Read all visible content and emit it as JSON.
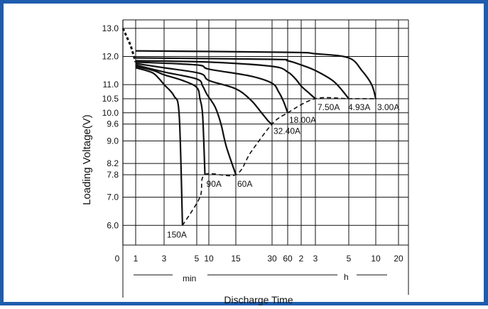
{
  "chart_data": {
    "type": "line",
    "ylabel": "Loading  Voltage(V)",
    "xlabel": "Discharge Time",
    "x_unit_min": "min",
    "x_unit_h": "h",
    "ylim": [
      5.3,
      13.3
    ],
    "y_ticks": [
      {
        "value": 6.0,
        "label": "6.0"
      },
      {
        "value": 7.0,
        "label": "7.0"
      },
      {
        "value": 7.8,
        "label": "7.8"
      },
      {
        "value": 8.2,
        "label": "8.2"
      },
      {
        "value": 9.0,
        "label": "9.0"
      },
      {
        "value": 9.6,
        "label": "9.6"
      },
      {
        "value": 10.0,
        "label": "10.0"
      },
      {
        "value": 10.5,
        "label": "10.5"
      },
      {
        "value": 11.0,
        "label": "11.0"
      },
      {
        "value": 12.0,
        "label": "12.0"
      },
      {
        "value": 13.0,
        "label": "13.0"
      }
    ],
    "x_ticks": [
      {
        "minutes": 0,
        "label": "0"
      },
      {
        "minutes": 1,
        "label": "1"
      },
      {
        "minutes": 3,
        "label": "3"
      },
      {
        "minutes": 5,
        "label": "5"
      },
      {
        "minutes": 10,
        "label": "10"
      },
      {
        "minutes": 15,
        "label": "15"
      },
      {
        "minutes": 30,
        "label": "30"
      },
      {
        "minutes": 60,
        "label": "60"
      },
      {
        "minutes": 120,
        "label": "2"
      },
      {
        "minutes": 180,
        "label": "3"
      },
      {
        "minutes": 300,
        "label": "5"
      },
      {
        "minutes": 600,
        "label": "10"
      },
      {
        "minutes": 1200,
        "label": "20"
      }
    ],
    "series": [
      {
        "name": "150A",
        "points": [
          [
            1,
            11.6
          ],
          [
            1.5,
            11.5
          ],
          [
            2,
            11.4
          ],
          [
            2.5,
            11.2
          ],
          [
            3,
            11.0
          ],
          [
            3.5,
            10.6
          ],
          [
            3.8,
            9.9
          ],
          [
            4,
            6.0
          ]
        ]
      },
      {
        "name": "90A",
        "points": [
          [
            1,
            11.65
          ],
          [
            2,
            11.5
          ],
          [
            3,
            11.35
          ],
          [
            4,
            11.15
          ],
          [
            5,
            10.9
          ],
          [
            6,
            10.5
          ],
          [
            7,
            9.9
          ],
          [
            8,
            7.8
          ]
        ]
      },
      {
        "name": "60A",
        "points": [
          [
            1,
            11.7
          ],
          [
            3,
            11.45
          ],
          [
            5,
            11.2
          ],
          [
            7,
            10.95
          ],
          [
            9,
            10.65
          ],
          [
            11,
            10.2
          ],
          [
            12,
            9.6
          ],
          [
            13,
            8.8
          ],
          [
            15,
            7.8
          ]
        ]
      },
      {
        "name": "32.40A",
        "points": [
          [
            1,
            11.75
          ],
          [
            3,
            11.6
          ],
          [
            6,
            11.4
          ],
          [
            10,
            11.15
          ],
          [
            15,
            10.85
          ],
          [
            20,
            10.45
          ],
          [
            24,
            10.05
          ],
          [
            28,
            9.7
          ],
          [
            30,
            9.6
          ]
        ]
      },
      {
        "name": "18.00A",
        "points": [
          [
            1,
            11.8
          ],
          [
            5,
            11.7
          ],
          [
            10,
            11.55
          ],
          [
            20,
            11.3
          ],
          [
            30,
            11.05
          ],
          [
            40,
            10.75
          ],
          [
            50,
            10.4
          ],
          [
            60,
            10.0
          ]
        ]
      },
      {
        "name": "7.50A",
        "points": [
          [
            1,
            11.85
          ],
          [
            10,
            11.8
          ],
          [
            30,
            11.65
          ],
          [
            60,
            11.45
          ],
          [
            90,
            11.2
          ],
          [
            120,
            10.95
          ],
          [
            150,
            10.7
          ],
          [
            180,
            10.5
          ]
        ]
      },
      {
        "name": "4.93A",
        "points": [
          [
            1,
            11.95
          ],
          [
            30,
            11.9
          ],
          [
            60,
            11.85
          ],
          [
            120,
            11.7
          ],
          [
            180,
            11.5
          ],
          [
            240,
            11.1
          ],
          [
            300,
            10.5
          ]
        ]
      },
      {
        "name": "3.00A",
        "points": [
          [
            1,
            12.2
          ],
          [
            60,
            12.15
          ],
          [
            180,
            12.1
          ],
          [
            300,
            11.95
          ],
          [
            420,
            11.5
          ],
          [
            540,
            11.0
          ],
          [
            600,
            10.5
          ]
        ]
      }
    ],
    "initial_drop": [
      [
        0,
        13.0
      ],
      [
        0.6,
        12.4
      ],
      [
        1,
        11.8
      ]
    ],
    "end_voltage_curve": [
      [
        4,
        6.0
      ],
      [
        6,
        7.0
      ],
      [
        8,
        7.8
      ],
      [
        15,
        7.8
      ],
      [
        20,
        8.6
      ],
      [
        30,
        9.6
      ],
      [
        60,
        10.0
      ],
      [
        180,
        10.5
      ],
      [
        300,
        10.5
      ],
      [
        600,
        10.5
      ]
    ],
    "labels": [
      {
        "text": "150A",
        "anchor": [
          4,
          6.0
        ]
      },
      {
        "text": "90A",
        "anchor": [
          8,
          7.8
        ]
      },
      {
        "text": "60A",
        "anchor": [
          15,
          7.8
        ]
      },
      {
        "text": "32.40A",
        "anchor": [
          30,
          9.6
        ]
      },
      {
        "text": "18.00A",
        "anchor": [
          60,
          10.0
        ]
      },
      {
        "text": "7.50A",
        "anchor": [
          180,
          10.5
        ]
      },
      {
        "text": "4.93A",
        "anchor": [
          300,
          10.5
        ]
      },
      {
        "text": "3.00A",
        "anchor": [
          600,
          10.5
        ]
      }
    ],
    "grid": true,
    "legend": "none"
  }
}
